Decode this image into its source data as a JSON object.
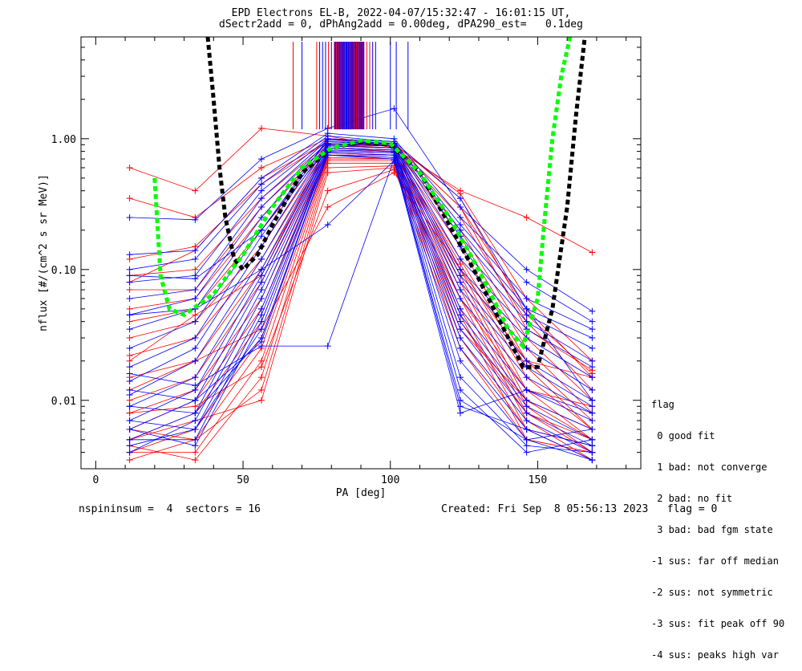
{
  "header": {
    "title_line1": "EPD Electrons EL-B, 2022-04-07/15:32:47 - 16:01:15 UT,",
    "title_line2": "dSectr2add = 0, dPhAng2add = 0.00deg, dPA290_est=   0.1deg"
  },
  "footer": {
    "left": "nspininsum =  4  sectors = 16",
    "right": "Created: Fri Sep  8 05:56:13 2023   flag = 0"
  },
  "legend": {
    "title": "flag",
    "items": [
      " 0 good fit",
      " 1 bad: not converge",
      " 2 bad: no fit",
      " 3 bad: bad fgm state",
      "-1 sus: far off median",
      "-2 sus: not symmetric",
      "-3 sus: fit peak off 90",
      "-4 sus: peaks high var"
    ]
  },
  "colors": {
    "red": "#ff0000",
    "blue": "#0000ff",
    "green": "#00ff00",
    "black": "#000000"
  },
  "chart_data": {
    "type": "line",
    "xlabel": "PA [deg]",
    "ylabel": "nflux [#/(cm^2 s sr MeV)]",
    "xlim": [
      -5,
      185
    ],
    "ylim": [
      0.003,
      6.0
    ],
    "yscale": "log",
    "xticks": [
      0,
      50,
      100,
      150
    ],
    "yticks": [
      {
        "value": 0.01,
        "label": "0.01"
      },
      {
        "value": 0.1,
        "label": "0.10"
      },
      {
        "value": 1.0,
        "label": "1.00"
      }
    ],
    "pa_bins": [
      11.5,
      33.75,
      56.25,
      78.75,
      101.25,
      123.75,
      146.25,
      168.5
    ],
    "series_red": [
      [
        0.6,
        0.4,
        1.2,
        1.05,
        0.85,
        0.4,
        0.25,
        0.135
      ],
      [
        0.35,
        0.25,
        0.6,
        1.0,
        0.9,
        0.38,
        0.06,
        0.02
      ],
      [
        0.12,
        0.15,
        0.45,
        0.95,
        0.9,
        0.3,
        0.05,
        0.015
      ],
      [
        0.09,
        0.1,
        0.35,
        0.92,
        0.88,
        0.25,
        0.04,
        0.012
      ],
      [
        0.07,
        0.07,
        0.3,
        0.9,
        0.85,
        0.2,
        0.03,
        0.01
      ],
      [
        0.05,
        0.06,
        0.25,
        0.88,
        0.85,
        0.18,
        0.025,
        0.008
      ],
      [
        0.04,
        0.05,
        0.2,
        0.85,
        0.82,
        0.15,
        0.02,
        0.007
      ],
      [
        0.03,
        0.04,
        0.15,
        0.85,
        0.8,
        0.12,
        0.018,
        0.006
      ],
      [
        0.022,
        0.03,
        0.12,
        0.82,
        0.8,
        0.11,
        0.015,
        0.006
      ],
      [
        0.015,
        0.02,
        0.1,
        0.8,
        0.78,
        0.1,
        0.012,
        0.005
      ],
      [
        0.01,
        0.015,
        0.08,
        0.8,
        0.78,
        0.09,
        0.01,
        0.005
      ],
      [
        0.008,
        0.012,
        0.06,
        0.78,
        0.75,
        0.08,
        0.009,
        0.004
      ],
      [
        0.006,
        0.01,
        0.05,
        0.75,
        0.75,
        0.07,
        0.008,
        0.004
      ],
      [
        0.005,
        0.008,
        0.04,
        0.75,
        0.72,
        0.06,
        0.007,
        0.0035
      ],
      [
        0.004,
        0.006,
        0.03,
        0.72,
        0.7,
        0.05,
        0.006,
        0.0035
      ],
      [
        0.0035,
        0.005,
        0.025,
        0.7,
        0.7,
        0.045,
        0.005,
        0.004
      ],
      [
        0.004,
        0.004,
        0.02,
        0.68,
        0.68,
        0.04,
        0.008,
        0.005
      ],
      [
        0.0045,
        0.0035,
        0.015,
        0.65,
        0.65,
        0.035,
        0.01,
        0.006
      ],
      [
        0.006,
        0.005,
        0.012,
        0.6,
        0.62,
        0.03,
        0.006,
        0.0045
      ],
      [
        0.005,
        0.007,
        0.01,
        0.55,
        0.6,
        0.025,
        0.005,
        0.004
      ],
      [
        0.008,
        0.009,
        0.018,
        0.4,
        0.58,
        0.06,
        0.012,
        0.009
      ],
      [
        0.012,
        0.02,
        0.035,
        0.3,
        0.55,
        0.1,
        0.02,
        0.015
      ],
      [
        0.02,
        0.045,
        0.09,
        0.9,
        0.9,
        0.3,
        0.035,
        0.017
      ],
      [
        0.08,
        0.14,
        0.5,
        0.95,
        0.92,
        0.35,
        0.045,
        0.016
      ]
    ],
    "series_blue": [
      [
        0.25,
        0.24,
        0.7,
        1.2,
        1.7,
        0.3,
        0.1,
        0.048
      ],
      [
        0.13,
        0.14,
        0.5,
        1.1,
        1.0,
        0.25,
        0.08,
        0.04
      ],
      [
        0.1,
        0.12,
        0.45,
        1.05,
        0.95,
        0.22,
        0.06,
        0.035
      ],
      [
        0.08,
        0.09,
        0.4,
        1.0,
        0.95,
        0.2,
        0.05,
        0.03
      ],
      [
        0.06,
        0.07,
        0.35,
        0.98,
        0.92,
        0.18,
        0.045,
        0.025
      ],
      [
        0.045,
        0.06,
        0.3,
        0.95,
        0.92,
        0.15,
        0.04,
        0.02
      ],
      [
        0.035,
        0.05,
        0.25,
        0.95,
        0.9,
        0.12,
        0.035,
        0.018
      ],
      [
        0.025,
        0.04,
        0.2,
        0.92,
        0.9,
        0.1,
        0.03,
        0.015
      ],
      [
        0.018,
        0.03,
        0.18,
        0.9,
        0.88,
        0.09,
        0.025,
        0.012
      ],
      [
        0.014,
        0.025,
        0.15,
        0.9,
        0.88,
        0.08,
        0.02,
        0.01
      ],
      [
        0.011,
        0.02,
        0.12,
        0.88,
        0.85,
        0.07,
        0.018,
        0.009
      ],
      [
        0.009,
        0.015,
        0.1,
        0.88,
        0.85,
        0.06,
        0.015,
        0.008
      ],
      [
        0.007,
        0.012,
        0.09,
        0.85,
        0.82,
        0.05,
        0.012,
        0.007
      ],
      [
        0.006,
        0.01,
        0.08,
        0.85,
        0.82,
        0.045,
        0.01,
        0.006
      ],
      [
        0.005,
        0.008,
        0.07,
        0.82,
        0.8,
        0.04,
        0.009,
        0.005
      ],
      [
        0.004,
        0.007,
        0.06,
        0.82,
        0.8,
        0.035,
        0.008,
        0.0045
      ],
      [
        0.0045,
        0.006,
        0.05,
        0.8,
        0.78,
        0.03,
        0.007,
        0.004
      ],
      [
        0.005,
        0.005,
        0.045,
        0.8,
        0.78,
        0.025,
        0.006,
        0.0035
      ],
      [
        0.006,
        0.0045,
        0.04,
        0.78,
        0.75,
        0.02,
        0.005,
        0.0035
      ],
      [
        0.007,
        0.006,
        0.035,
        0.78,
        0.75,
        0.015,
        0.0045,
        0.004
      ],
      [
        0.009,
        0.008,
        0.03,
        0.75,
        0.72,
        0.012,
        0.004,
        0.005
      ],
      [
        0.012,
        0.01,
        0.028,
        0.75,
        0.7,
        0.01,
        0.005,
        0.006
      ],
      [
        0.016,
        0.013,
        0.026,
        0.026,
        0.7,
        0.009,
        0.006,
        0.0045
      ],
      [
        0.045,
        0.05,
        0.1,
        0.22,
        0.68,
        0.008,
        0.012,
        0.008
      ],
      [
        0.09,
        0.085,
        0.2,
        1.0,
        0.95,
        0.35,
        0.05,
        0.01
      ]
    ],
    "fit_green": [
      [
        20,
        0.5
      ],
      [
        22,
        0.09
      ],
      [
        25,
        0.05
      ],
      [
        30,
        0.045
      ],
      [
        40,
        0.065
      ],
      [
        50,
        0.13
      ],
      [
        60,
        0.3
      ],
      [
        70,
        0.6
      ],
      [
        80,
        0.85
      ],
      [
        90,
        0.97
      ],
      [
        100,
        0.92
      ],
      [
        110,
        0.55
      ],
      [
        120,
        0.25
      ],
      [
        130,
        0.1
      ],
      [
        140,
        0.035
      ],
      [
        145,
        0.026
      ],
      [
        150,
        0.06
      ],
      [
        152,
        0.2
      ],
      [
        155,
        1.0
      ],
      [
        158,
        3.0
      ],
      [
        161,
        6.0
      ]
    ],
    "fit_black": [
      [
        38,
        6.0
      ],
      [
        40,
        2.0
      ],
      [
        42,
        0.6
      ],
      [
        44,
        0.25
      ],
      [
        47,
        0.12
      ],
      [
        50,
        0.1
      ],
      [
        55,
        0.13
      ],
      [
        60,
        0.22
      ],
      [
        70,
        0.55
      ],
      [
        80,
        0.85
      ],
      [
        90,
        0.95
      ],
      [
        100,
        0.9
      ],
      [
        110,
        0.55
      ],
      [
        120,
        0.22
      ],
      [
        130,
        0.085
      ],
      [
        140,
        0.03
      ],
      [
        145,
        0.018
      ],
      [
        150,
        0.018
      ],
      [
        155,
        0.05
      ],
      [
        160,
        0.3
      ],
      [
        163,
        1.5
      ],
      [
        166,
        6.0
      ]
    ],
    "peak_lines_red": [
      67,
      75,
      79,
      82,
      84,
      86,
      88,
      89,
      90,
      91,
      92,
      93
    ],
    "peak_lines_blue": [
      70,
      76,
      77,
      78,
      80,
      81,
      83,
      85,
      87,
      90.5,
      94,
      95,
      100,
      102,
      106
    ]
  }
}
